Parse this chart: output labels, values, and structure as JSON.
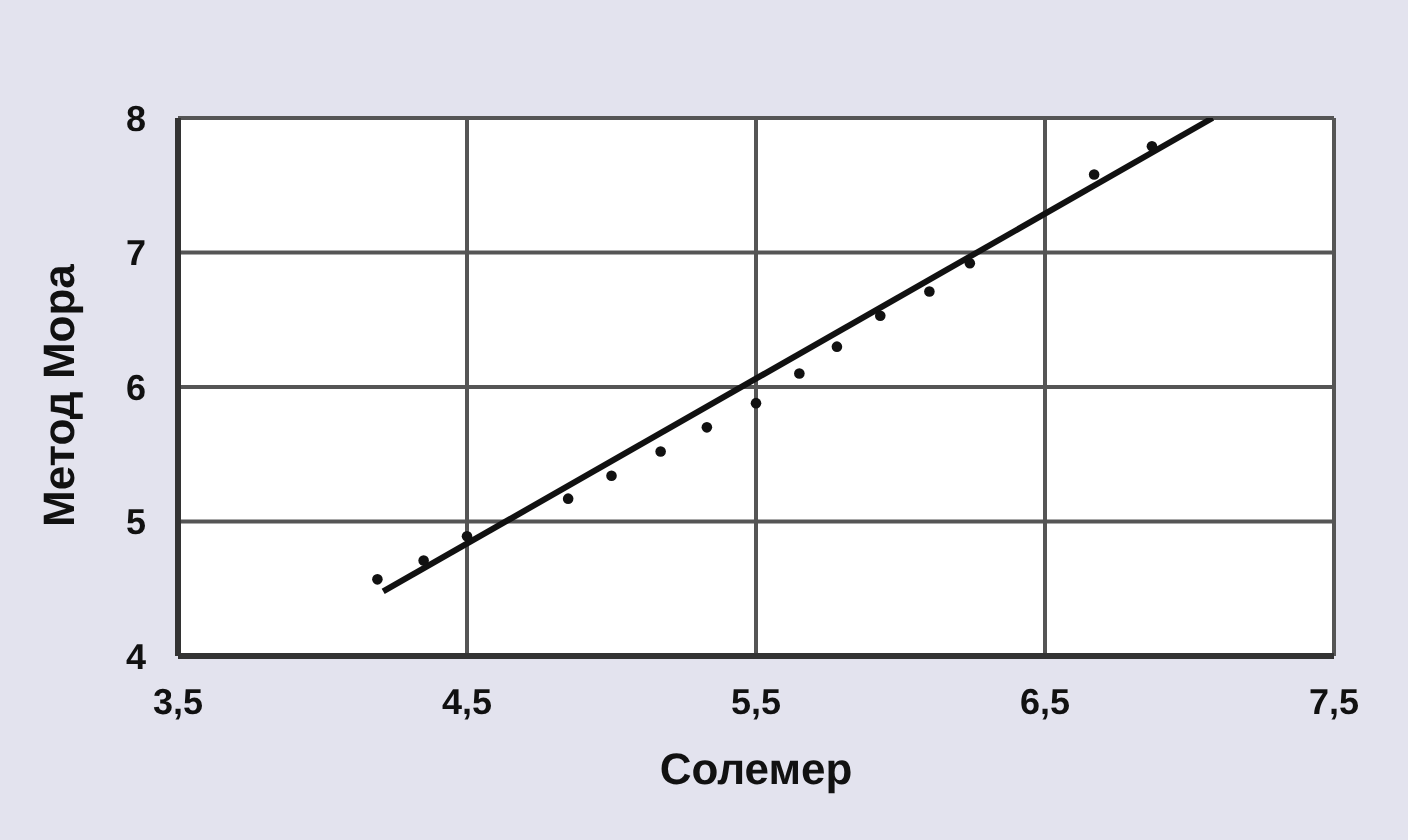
{
  "chart_data": {
    "type": "scatter",
    "xlabel": "Солемер",
    "ylabel": "Метод Мора",
    "series": [
      {
        "marker": "circle",
        "color": "#111111",
        "x": [
          4.19,
          4.35,
          4.5,
          4.85,
          5.0,
          5.17,
          5.33,
          5.5,
          5.65,
          5.78,
          5.93,
          6.1,
          6.24,
          6.67,
          6.87
        ],
        "values": [
          4.57,
          4.71,
          4.89,
          5.17,
          5.34,
          5.52,
          5.7,
          5.88,
          6.1,
          6.3,
          6.53,
          6.71,
          6.92,
          7.58,
          7.79
        ]
      },
      {
        "type": "line",
        "color": "#111111",
        "x": [
          4.21,
          7.08
        ],
        "values": [
          4.48,
          8.0
        ]
      }
    ],
    "xlim": [
      3.5,
      7.5
    ],
    "xticks": [
      {
        "value": 3.5,
        "label": "3,5"
      },
      {
        "value": 4.5,
        "label": "4,5"
      },
      {
        "value": 5.5,
        "label": "5,5"
      },
      {
        "value": 6.5,
        "label": "6,5"
      },
      {
        "value": 7.5,
        "label": "7,5"
      }
    ],
    "ylim": [
      4,
      8
    ],
    "yticks": [
      4,
      5,
      6,
      7,
      8
    ],
    "grid": true,
    "line_style": "solid"
  }
}
